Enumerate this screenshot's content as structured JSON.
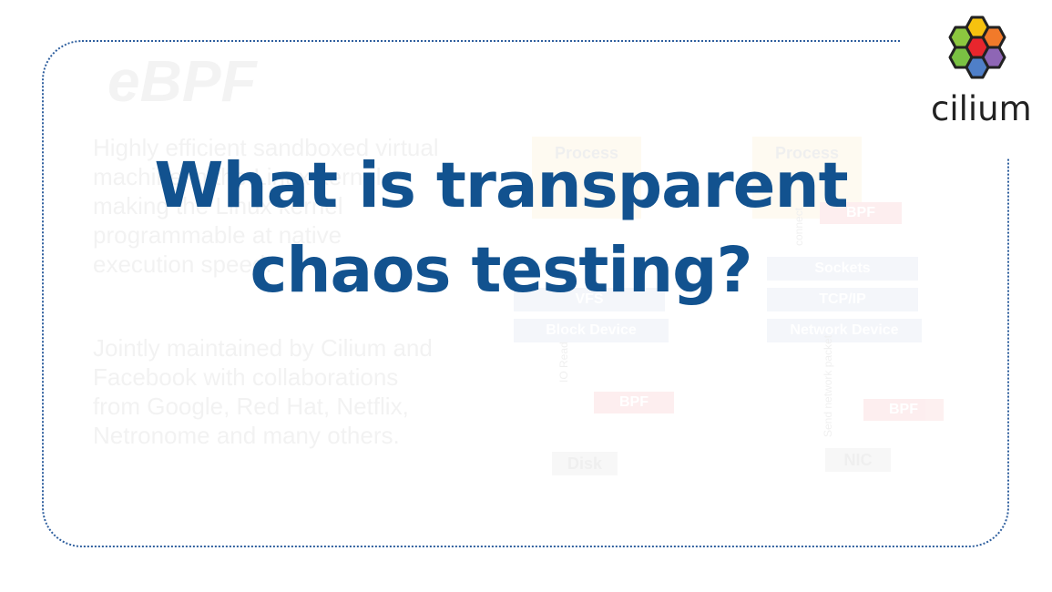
{
  "slide": {
    "title_line1": "What is transparent",
    "title_line2": "chaos testing?",
    "logo_text": "cilium"
  },
  "background": {
    "heading": "eBPF",
    "paragraph1": "Highly efficient sandboxed virtual machine in the Linux kernel making the Linux kernel programmable at native execution speed.",
    "paragraph2": "Jointly maintained by Cilium and Facebook with collaborations from Google, Red Hat, Netflix, Netronome and many others.",
    "diagram": {
      "process_left": "Process",
      "process_right": "Process",
      "bpf_top": "BPF",
      "sockets": "Sockets",
      "tcpip": "TCP/IP",
      "vfs": "VFS",
      "block_device": "Block Device",
      "network_device": "Network Device",
      "bpf_left": "BPF",
      "bpf_right": "BPF",
      "io_read": "IO Read",
      "send_packet": "Send network packet",
      "connect": "connect",
      "disk": "Disk",
      "nic": "NIC"
    }
  },
  "colors": {
    "title": "#12528f",
    "frame": "#2f5f9e",
    "hex_yellow_green": "#8cc63f",
    "hex_yellow": "#f6c20f",
    "hex_orange": "#f17a2a",
    "hex_red": "#e8262d",
    "hex_purple": "#8e66b5",
    "hex_blue": "#4f7fc8",
    "hex_green": "#7ac143"
  }
}
